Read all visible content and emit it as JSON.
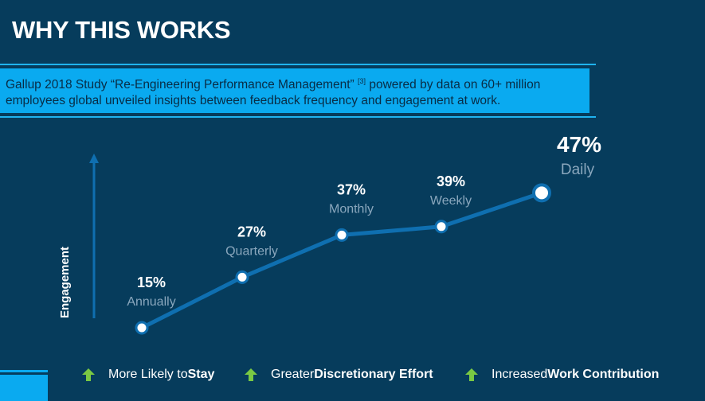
{
  "page": {
    "title": "WHY THIS WORKS",
    "banner": {
      "text_before_sup": "Gallup 2018 Study “Re-Engineering Performance Management”",
      "sup": "[3]",
      "text_after_sup": " powered by data on 60+ million employees global unveiled insights between feedback frequency and engagement at work."
    }
  },
  "chart_data": {
    "type": "line",
    "ylabel": "Engagement",
    "categories": [
      "Annually",
      "Quarterly",
      "Monthly",
      "Weekly",
      "Daily"
    ],
    "values": [
      15,
      27,
      37,
      39,
      47
    ],
    "value_labels": [
      "15%",
      "27%",
      "37%",
      "39%",
      "47%"
    ],
    "unit": "%",
    "series": [
      {
        "name": "Engagement",
        "values": [
          15,
          27,
          37,
          39,
          47
        ]
      }
    ],
    "colors": {
      "line": "#0f6fb0",
      "marker_fill": "#ffffff",
      "axis": "#0f6fb0"
    }
  },
  "legend": [
    {
      "prefix": "More Likely to ",
      "bold": "Stay"
    },
    {
      "prefix": "Greater ",
      "bold": "Discretionary Effort"
    },
    {
      "prefix": "Increased ",
      "bold": "Work Contribution"
    }
  ],
  "colors": {
    "background": "#063c5c",
    "accent": "#0aaaf0",
    "arrow": "#7ac943"
  }
}
